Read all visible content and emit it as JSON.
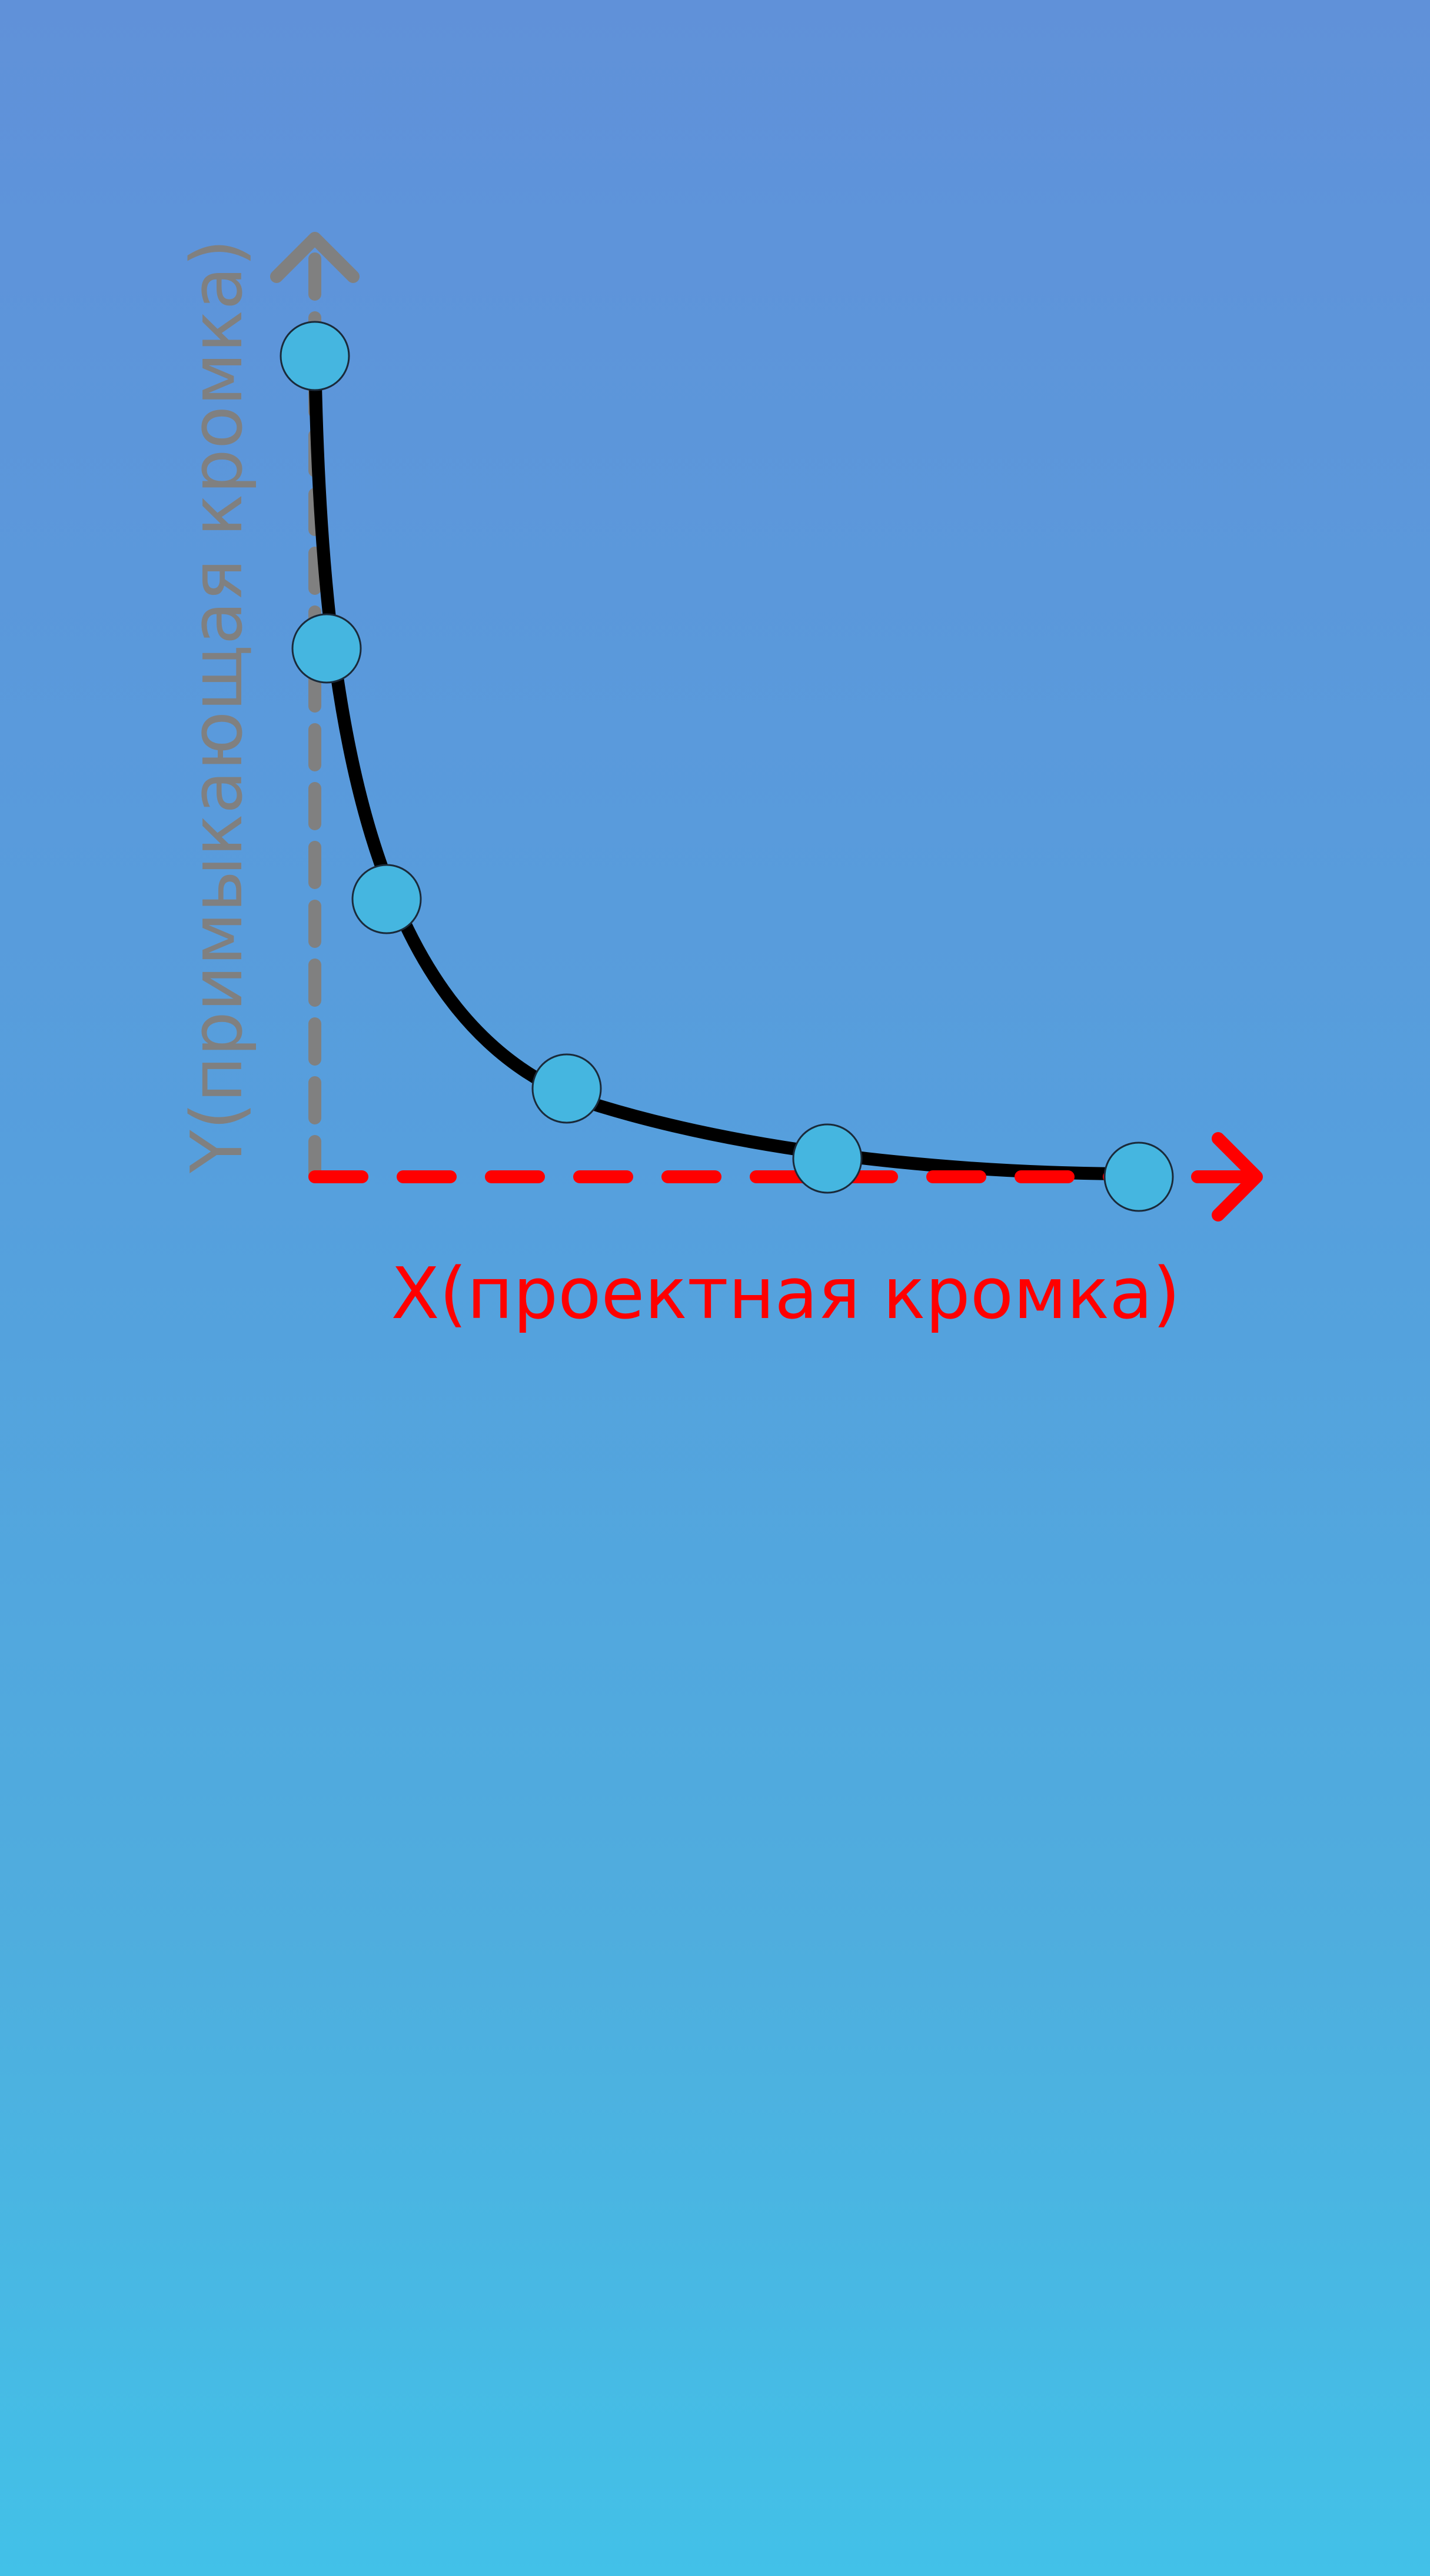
{
  "x_axis": {
    "label": "X(проектная кромка)",
    "color": "#ff0000"
  },
  "y_axis": {
    "label": "Y(примыкающая кромка)",
    "color": "#808080"
  },
  "curve": {
    "color": "#000000"
  },
  "points": {
    "fill": "#45b6e0",
    "stroke": "#1a2a3a",
    "count": 6
  },
  "background": {
    "top": "#6091d9",
    "bottom": "#42c1e8"
  }
}
